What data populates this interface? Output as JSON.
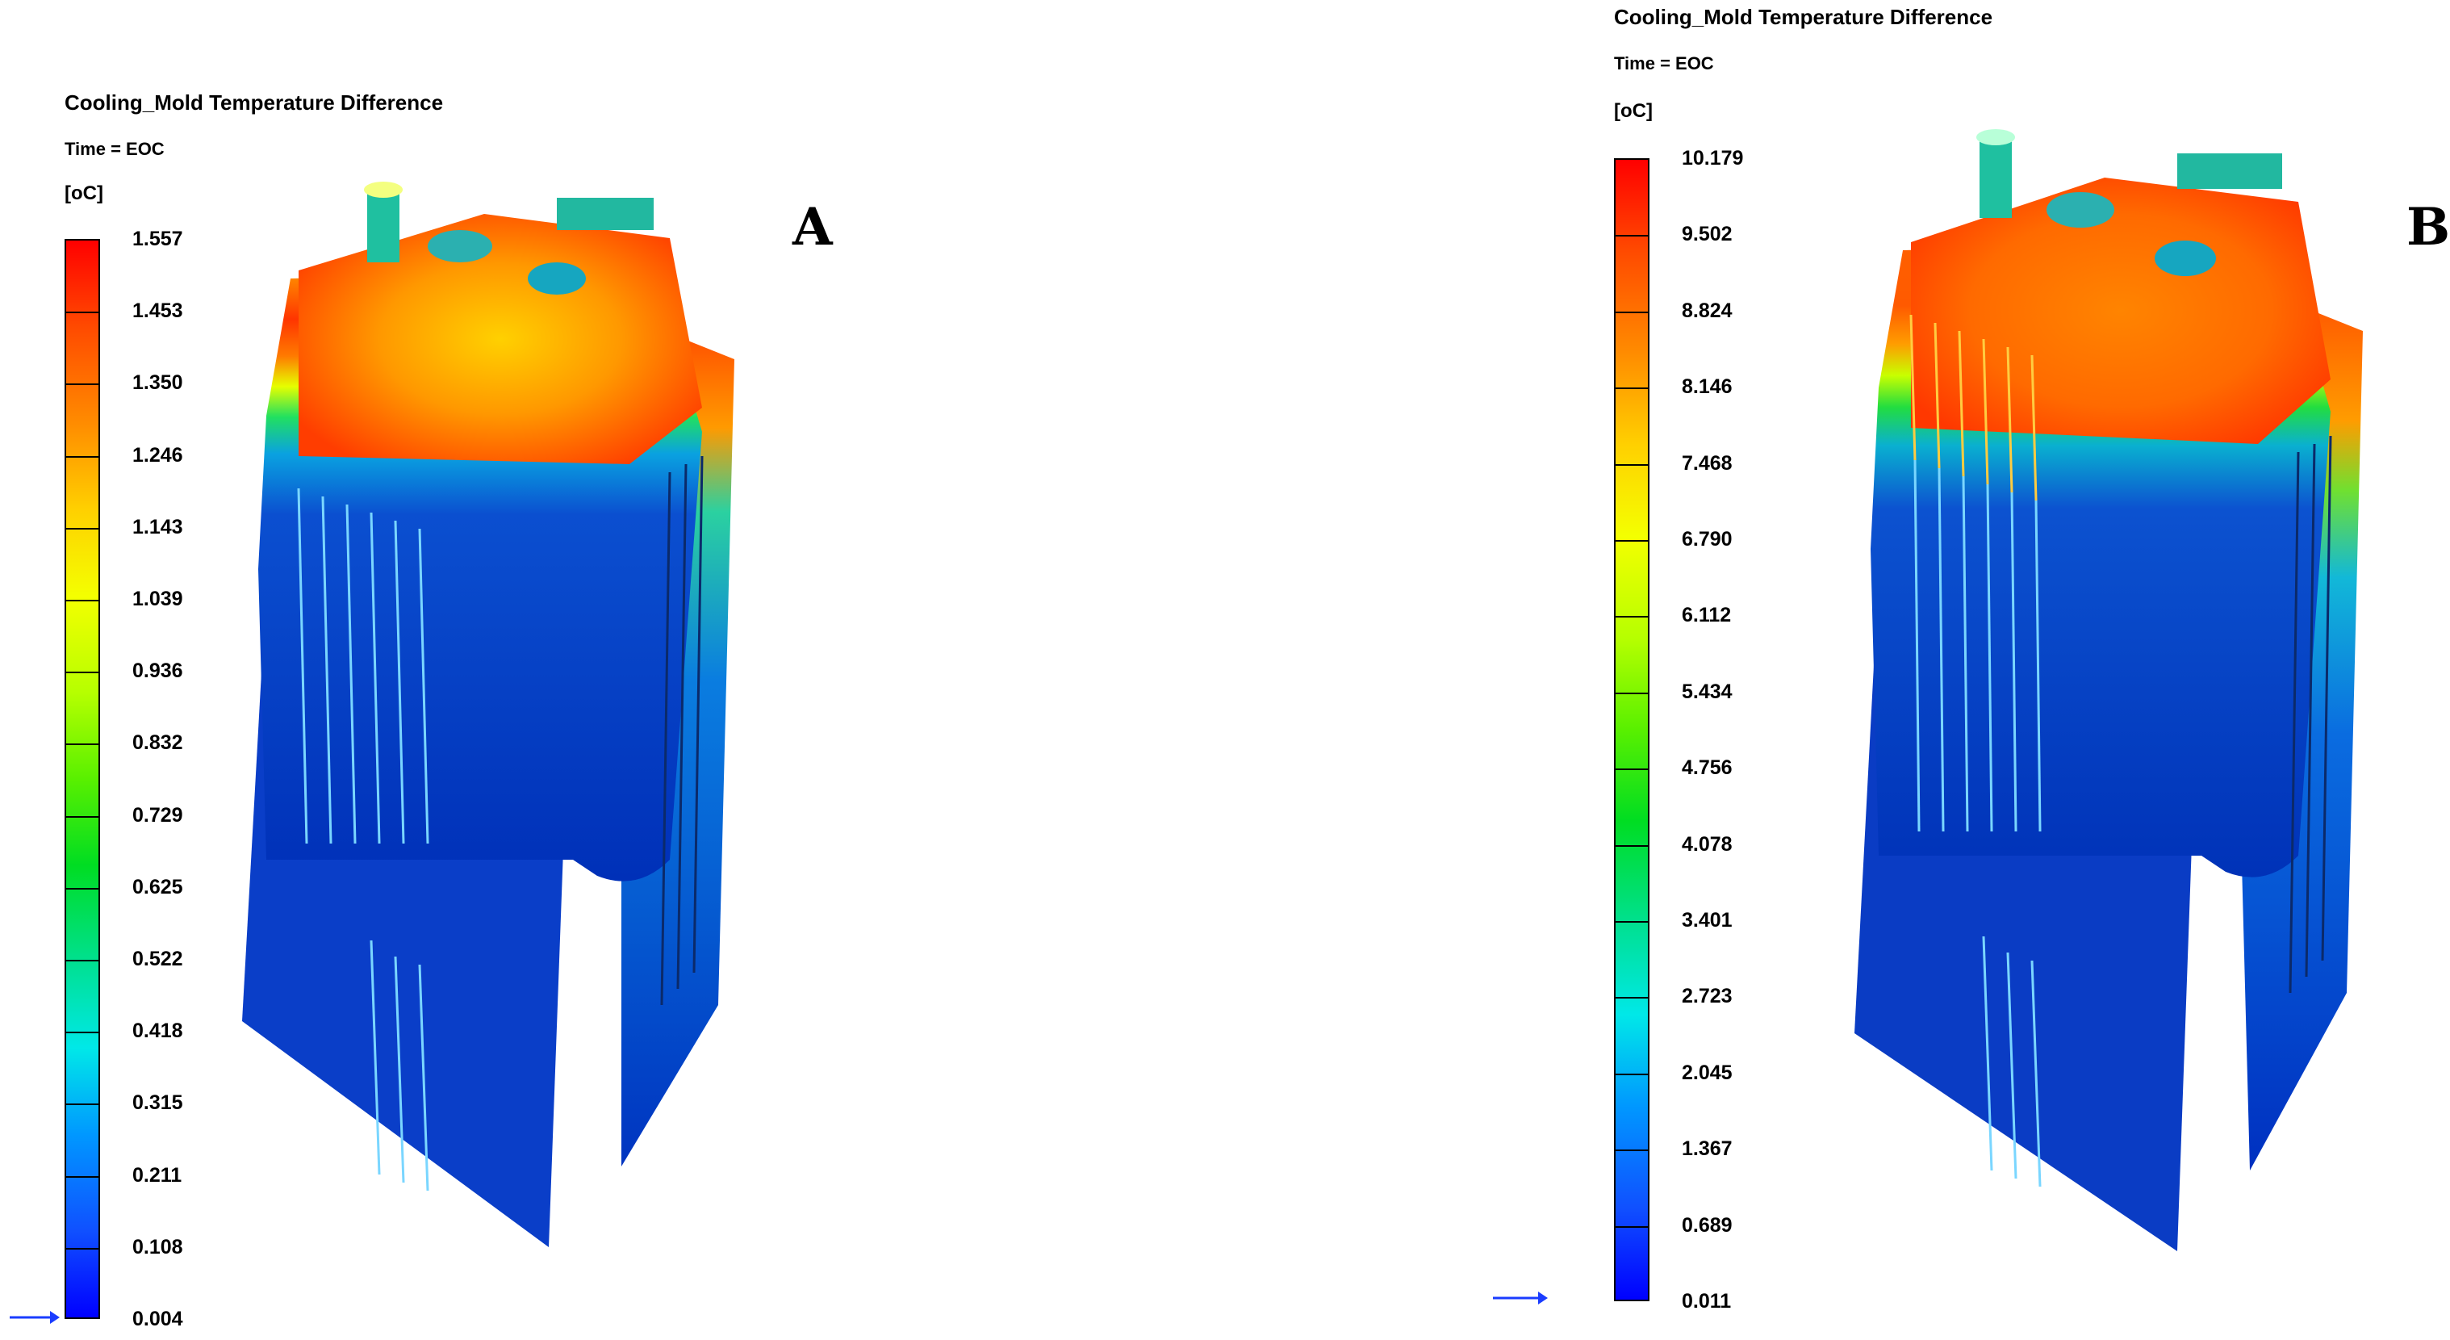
{
  "panels": [
    {
      "letter": "A",
      "legend": {
        "title": "Cooling_Mold Temperature Difference",
        "time": "Time = EOC",
        "unit": "[oC]",
        "ticks": [
          "1.557",
          "1.453",
          "1.350",
          "1.246",
          "1.143",
          "1.039",
          "0.936",
          "0.832",
          "0.729",
          "0.625",
          "0.522",
          "0.418",
          "0.315",
          "0.211",
          "0.108",
          "0.004"
        ]
      },
      "arrow_value": "0.004"
    },
    {
      "letter": "B",
      "legend": {
        "title": "Cooling_Mold Temperature Difference",
        "time": "Time = EOC",
        "unit": "[oC]",
        "ticks": [
          "10.179",
          "9.502",
          "8.824",
          "8.146",
          "7.468",
          "6.790",
          "6.112",
          "5.434",
          "4.756",
          "4.078",
          "3.401",
          "2.723",
          "2.045",
          "1.367",
          "0.689",
          "0.011"
        ]
      },
      "arrow_value": "0.011"
    }
  ],
  "colors": {
    "max": "#ff0000",
    "min": "#0000ff",
    "arrow": "#1a3cff"
  }
}
